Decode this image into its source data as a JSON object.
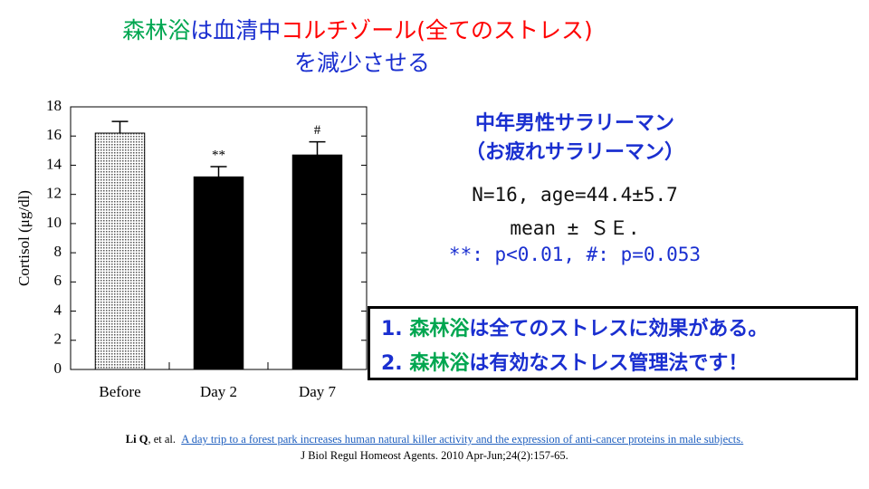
{
  "title": {
    "line1": [
      {
        "text": "森林浴",
        "color": "#00a650"
      },
      {
        "text": "は血清中",
        "color": "#1a2fd0"
      },
      {
        "text": "コルチゾール(全てのストレス)",
        "color": "#ff0000"
      }
    ],
    "line2": [
      {
        "text": "を減少させる",
        "color": "#1a2fd0"
      }
    ]
  },
  "chart_data": {
    "type": "bar",
    "categories": [
      "Before",
      "Day 2",
      "Day 7"
    ],
    "values": [
      16.2,
      13.2,
      14.7
    ],
    "errors": [
      0.8,
      0.7,
      0.9
    ],
    "colors": [
      "#e4e4e4",
      "#000000",
      "#000000"
    ],
    "annotations": [
      null,
      "**",
      "#"
    ],
    "y_label": "Cortisol (μg/dl)",
    "ylim": [
      0,
      18
    ],
    "yticks": [
      0,
      2,
      4,
      6,
      8,
      10,
      12,
      14,
      16,
      18
    ]
  },
  "info": {
    "subject1": "中年男性サラリーマン",
    "subject2": "（お疲れサラリーマン）",
    "stats1": "N=16, age=44.4±5.7",
    "stats2": "mean ± ＳＥ.",
    "stats3": "**: p<0.01, #: p=0.053"
  },
  "conclusions": [
    [
      {
        "text": "1. ",
        "color": "#1a2fd0"
      },
      {
        "text": "森林浴",
        "color": "#00a650"
      },
      {
        "text": "は全てのストレスに効果がある。",
        "color": "#1a2fd0"
      }
    ],
    [
      {
        "text": "2. ",
        "color": "#1a2fd0"
      },
      {
        "text": "森林浴",
        "color": "#00a650"
      },
      {
        "text": "は有効なストレス管理法です！",
        "color": "#1a2fd0"
      }
    ]
  ],
  "citation": {
    "author": "Li Q",
    "etal": ", et al.",
    "link": "A day trip to a forest park increases human natural killer activity and the expression of anti-cancer proteins in male subjects.",
    "journal": "J Biol Regul Homeost Agents. 2010 Apr-Jun;24(2):157-65."
  }
}
